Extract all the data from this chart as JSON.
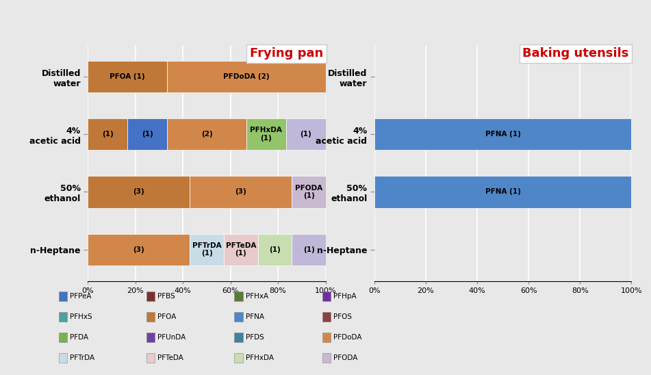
{
  "frying_pan": {
    "categories": [
      "n-Heptane",
      "50%\nethanol",
      "4%\nacetic acid",
      "Distilled\nwater"
    ],
    "bars": [
      [
        {
          "value": 42.9,
          "color": "#d2874a",
          "text": "(3)"
        },
        {
          "value": 14.3,
          "color": "#c8dce8",
          "text": "PFTrDA\n(1)"
        },
        {
          "value": 14.3,
          "color": "#e8caca",
          "text": "PFTeDA\n(1)"
        },
        {
          "value": 14.3,
          "color": "#c8ddb0",
          "text": "(1)"
        },
        {
          "value": 14.3,
          "color": "#c0b8d8",
          "text": "(1)"
        }
      ],
      [
        {
          "value": 42.9,
          "color": "#c07838",
          "text": "(3)"
        },
        {
          "value": 42.9,
          "color": "#d2874a",
          "text": "(3)"
        },
        {
          "value": 14.3,
          "color": "#c8b8d0",
          "text": "PFODA\n(1)"
        }
      ],
      [
        {
          "value": 16.7,
          "color": "#c07838",
          "text": "(1)"
        },
        {
          "value": 16.7,
          "color": "#4472c4",
          "text": "(1)"
        },
        {
          "value": 33.3,
          "color": "#d2874a",
          "text": "(2)"
        },
        {
          "value": 16.7,
          "color": "#92c46a",
          "text": "PFHxDA\n(1)"
        },
        {
          "value": 16.7,
          "color": "#c0b8d8",
          "text": "(1)"
        }
      ],
      [
        {
          "value": 33.3,
          "color": "#c07838",
          "text": "PFOA (1)"
        },
        {
          "value": 66.7,
          "color": "#d2874a",
          "text": "PFDoDA (2)"
        }
      ]
    ]
  },
  "baking_utensils": {
    "categories": [
      "n-Heptane",
      "50%\nethanol",
      "4%\nacetic acid",
      "Distilled\nwater"
    ],
    "bars": [
      [],
      [
        {
          "value": 100,
          "color": "#4e86c8",
          "text": "PFNA (1)"
        }
      ],
      [
        {
          "value": 100,
          "color": "#4e86c8",
          "text": "PFNA (1)"
        }
      ],
      []
    ]
  },
  "legend_items": [
    {
      "label": "PFPeA",
      "color": "#4472c4"
    },
    {
      "label": "PFBS",
      "color": "#7a3030"
    },
    {
      "label": "PFHxA",
      "color": "#5a7a3a"
    },
    {
      "label": "PFHpA",
      "color": "#7030a0"
    },
    {
      "label": "PFHxS",
      "color": "#4ba0a0"
    },
    {
      "label": "PFOA",
      "color": "#c07838"
    },
    {
      "label": "PFNA",
      "color": "#4e86c8"
    },
    {
      "label": "PFOS",
      "color": "#8b4040"
    },
    {
      "label": "PFDA",
      "color": "#7ab050"
    },
    {
      "label": "PFUnDA",
      "color": "#7040a8"
    },
    {
      "label": "PFDS",
      "color": "#4080a0"
    },
    {
      "label": "PFDoDA",
      "color": "#d2874a"
    },
    {
      "label": "PFTrDA",
      "color": "#c8dce8"
    },
    {
      "label": "PFTeDA",
      "color": "#e8caca"
    },
    {
      "label": "PFHxDA",
      "color": "#c8ddb0"
    },
    {
      "label": "PFODA",
      "color": "#c8b8d0"
    }
  ],
  "background_color": "#e8e8e8",
  "title_frying": "Frying pan",
  "title_baking": "Baking utensils",
  "title_color": "#cc0000"
}
